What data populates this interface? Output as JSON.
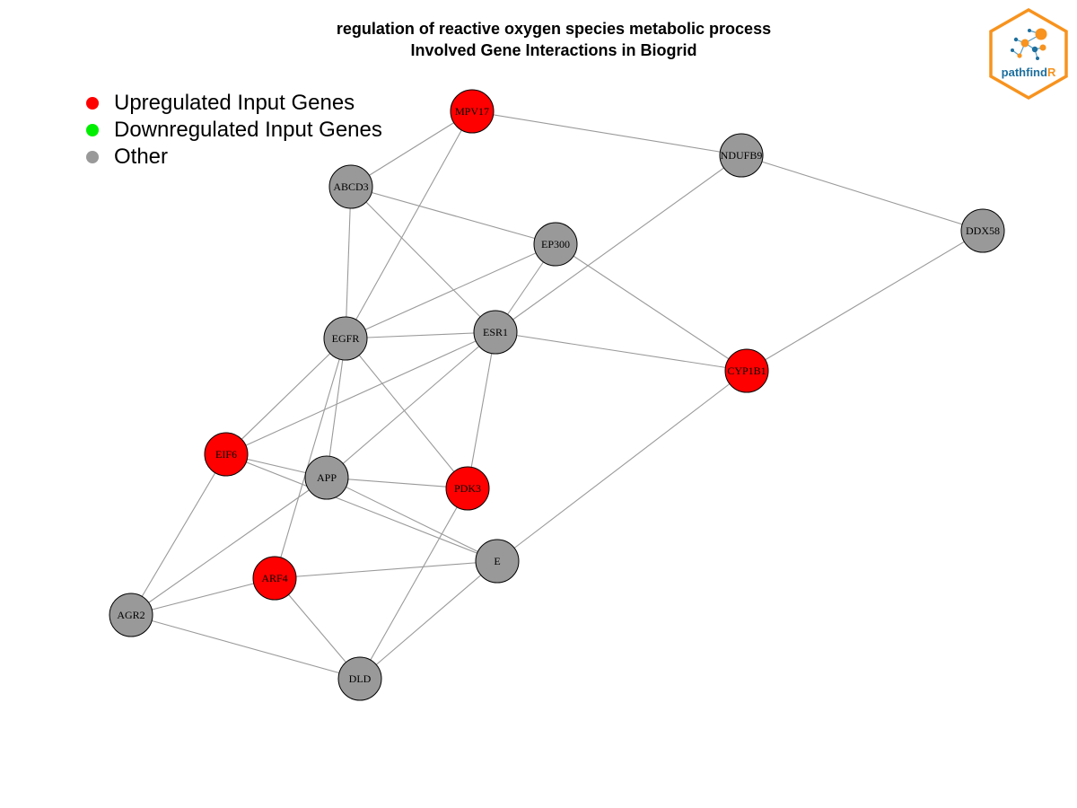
{
  "title": {
    "line1": "regulation of reactive oxygen species metabolic process",
    "line2": "Involved Gene Interactions in Biogrid"
  },
  "legend": [
    {
      "label": "Upregulated Input Genes",
      "color": "#ff0000"
    },
    {
      "label": "Downregulated Input Genes",
      "color": "#00ee00"
    },
    {
      "label": "Other",
      "color": "#999999"
    }
  ],
  "logo": {
    "text_main": "pathfind",
    "text_accent": "R",
    "border_color": "#f7931e",
    "text_color": "#1d6f9e",
    "accent_color": "#f7931e"
  },
  "colors": {
    "up": "#ff0000",
    "down": "#00ee00",
    "other": "#999999"
  },
  "nodes": [
    {
      "id": "MPV17",
      "status": "up"
    },
    {
      "id": "NDUFB9",
      "status": "other"
    },
    {
      "id": "ABCD3",
      "status": "other"
    },
    {
      "id": "DDX58",
      "status": "other"
    },
    {
      "id": "EP300",
      "status": "other"
    },
    {
      "id": "EGFR",
      "status": "other"
    },
    {
      "id": "ESR1",
      "status": "other"
    },
    {
      "id": "CYP1B1",
      "status": "up"
    },
    {
      "id": "EIF6",
      "status": "up"
    },
    {
      "id": "APP",
      "status": "other"
    },
    {
      "id": "PDK3",
      "status": "up"
    },
    {
      "id": "E",
      "status": "other"
    },
    {
      "id": "ARF4",
      "status": "up"
    },
    {
      "id": "AGR2",
      "status": "other"
    },
    {
      "id": "DLD",
      "status": "other"
    }
  ],
  "edges": [
    [
      "MPV17",
      "NDUFB9"
    ],
    [
      "MPV17",
      "ABCD3"
    ],
    [
      "MPV17",
      "EGFR"
    ],
    [
      "NDUFB9",
      "DDX58"
    ],
    [
      "NDUFB9",
      "ESR1"
    ],
    [
      "DDX58",
      "CYP1B1"
    ],
    [
      "ABCD3",
      "EP300"
    ],
    [
      "ABCD3",
      "EGFR"
    ],
    [
      "ABCD3",
      "ESR1"
    ],
    [
      "EP300",
      "EGFR"
    ],
    [
      "EP300",
      "ESR1"
    ],
    [
      "EP300",
      "CYP1B1"
    ],
    [
      "EGFR",
      "ESR1"
    ],
    [
      "EGFR",
      "EIF6"
    ],
    [
      "EGFR",
      "APP"
    ],
    [
      "EGFR",
      "PDK3"
    ],
    [
      "EGFR",
      "ARF4"
    ],
    [
      "ESR1",
      "CYP1B1"
    ],
    [
      "ESR1",
      "EIF6"
    ],
    [
      "ESR1",
      "APP"
    ],
    [
      "ESR1",
      "PDK3"
    ],
    [
      "CYP1B1",
      "E"
    ],
    [
      "EIF6",
      "APP"
    ],
    [
      "EIF6",
      "E"
    ],
    [
      "EIF6",
      "AGR2"
    ],
    [
      "APP",
      "PDK3"
    ],
    [
      "APP",
      "E"
    ],
    [
      "APP",
      "AGR2"
    ],
    [
      "PDK3",
      "DLD"
    ],
    [
      "E",
      "ARF4"
    ],
    [
      "E",
      "DLD"
    ],
    [
      "ARF4",
      "AGR2"
    ],
    [
      "ARF4",
      "DLD"
    ],
    [
      "AGR2",
      "DLD"
    ]
  ]
}
